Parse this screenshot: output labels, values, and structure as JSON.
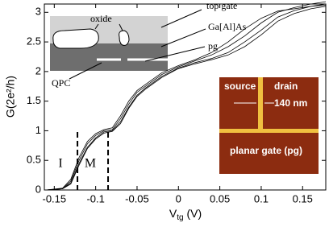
{
  "chart_data": {
    "type": "line",
    "x": [
      -0.16,
      -0.14,
      -0.13,
      -0.12,
      -0.11,
      -0.1,
      -0.09,
      -0.08,
      -0.07,
      -0.06,
      -0.05,
      -0.04,
      -0.02,
      0,
      0.02,
      0.04,
      0.06,
      0.08,
      0.1,
      0.12,
      0.14,
      0.16,
      0.178
    ],
    "series": [
      {
        "color": "#000000",
        "values": [
          0,
          0.02,
          0.15,
          0.5,
          0.78,
          0.92,
          1.0,
          1.02,
          1.2,
          1.45,
          1.65,
          1.75,
          1.95,
          2.08,
          2.18,
          2.28,
          2.42,
          2.6,
          2.82,
          3.0,
          3.08,
          3.14,
          3.18
        ]
      },
      {
        "color": "#000000",
        "values": [
          0,
          0.02,
          0.12,
          0.45,
          0.72,
          0.88,
          0.98,
          1.0,
          1.15,
          1.4,
          1.6,
          1.72,
          1.92,
          2.06,
          2.15,
          2.22,
          2.32,
          2.5,
          2.7,
          2.92,
          3.03,
          3.1,
          3.14
        ]
      },
      {
        "color": "#000000",
        "values": [
          0,
          0.03,
          0.18,
          0.55,
          0.82,
          0.95,
          1.02,
          1.05,
          1.25,
          1.5,
          1.68,
          1.78,
          1.98,
          2.1,
          2.2,
          2.32,
          2.5,
          2.72,
          2.9,
          3.02,
          3.06,
          3.1,
          3.12
        ]
      },
      {
        "color": "#000000",
        "values": [
          0,
          0.02,
          0.1,
          0.42,
          0.7,
          0.86,
          0.96,
          0.99,
          1.12,
          1.38,
          1.58,
          1.7,
          1.9,
          2.05,
          2.13,
          2.2,
          2.28,
          2.42,
          2.62,
          2.85,
          2.98,
          3.06,
          3.1
        ]
      }
    ],
    "xlim": [
      -0.162,
      0.178
    ],
    "ylim": [
      0,
      3.14
    ],
    "xticks": [
      -0.15,
      -0.1,
      -0.05,
      0,
      0.05,
      0.1,
      0.15
    ],
    "yticks": [
      0,
      0.5,
      1,
      1.5,
      2,
      2.5,
      3
    ],
    "ylabel": "G(2e²/h)",
    "xlabel_parts": [
      "V",
      "tg",
      " (V)"
    ],
    "dashed_lines": [
      -0.122,
      -0.085
    ],
    "region_labels": [
      "I",
      "M"
    ],
    "schematic_labels": [
      "oxide",
      "top gate",
      "Ga[Al]As",
      "pg",
      "QPC"
    ],
    "image_labels": [
      "source",
      "drain",
      "140 nm",
      "planar gate (pg)"
    ]
  }
}
